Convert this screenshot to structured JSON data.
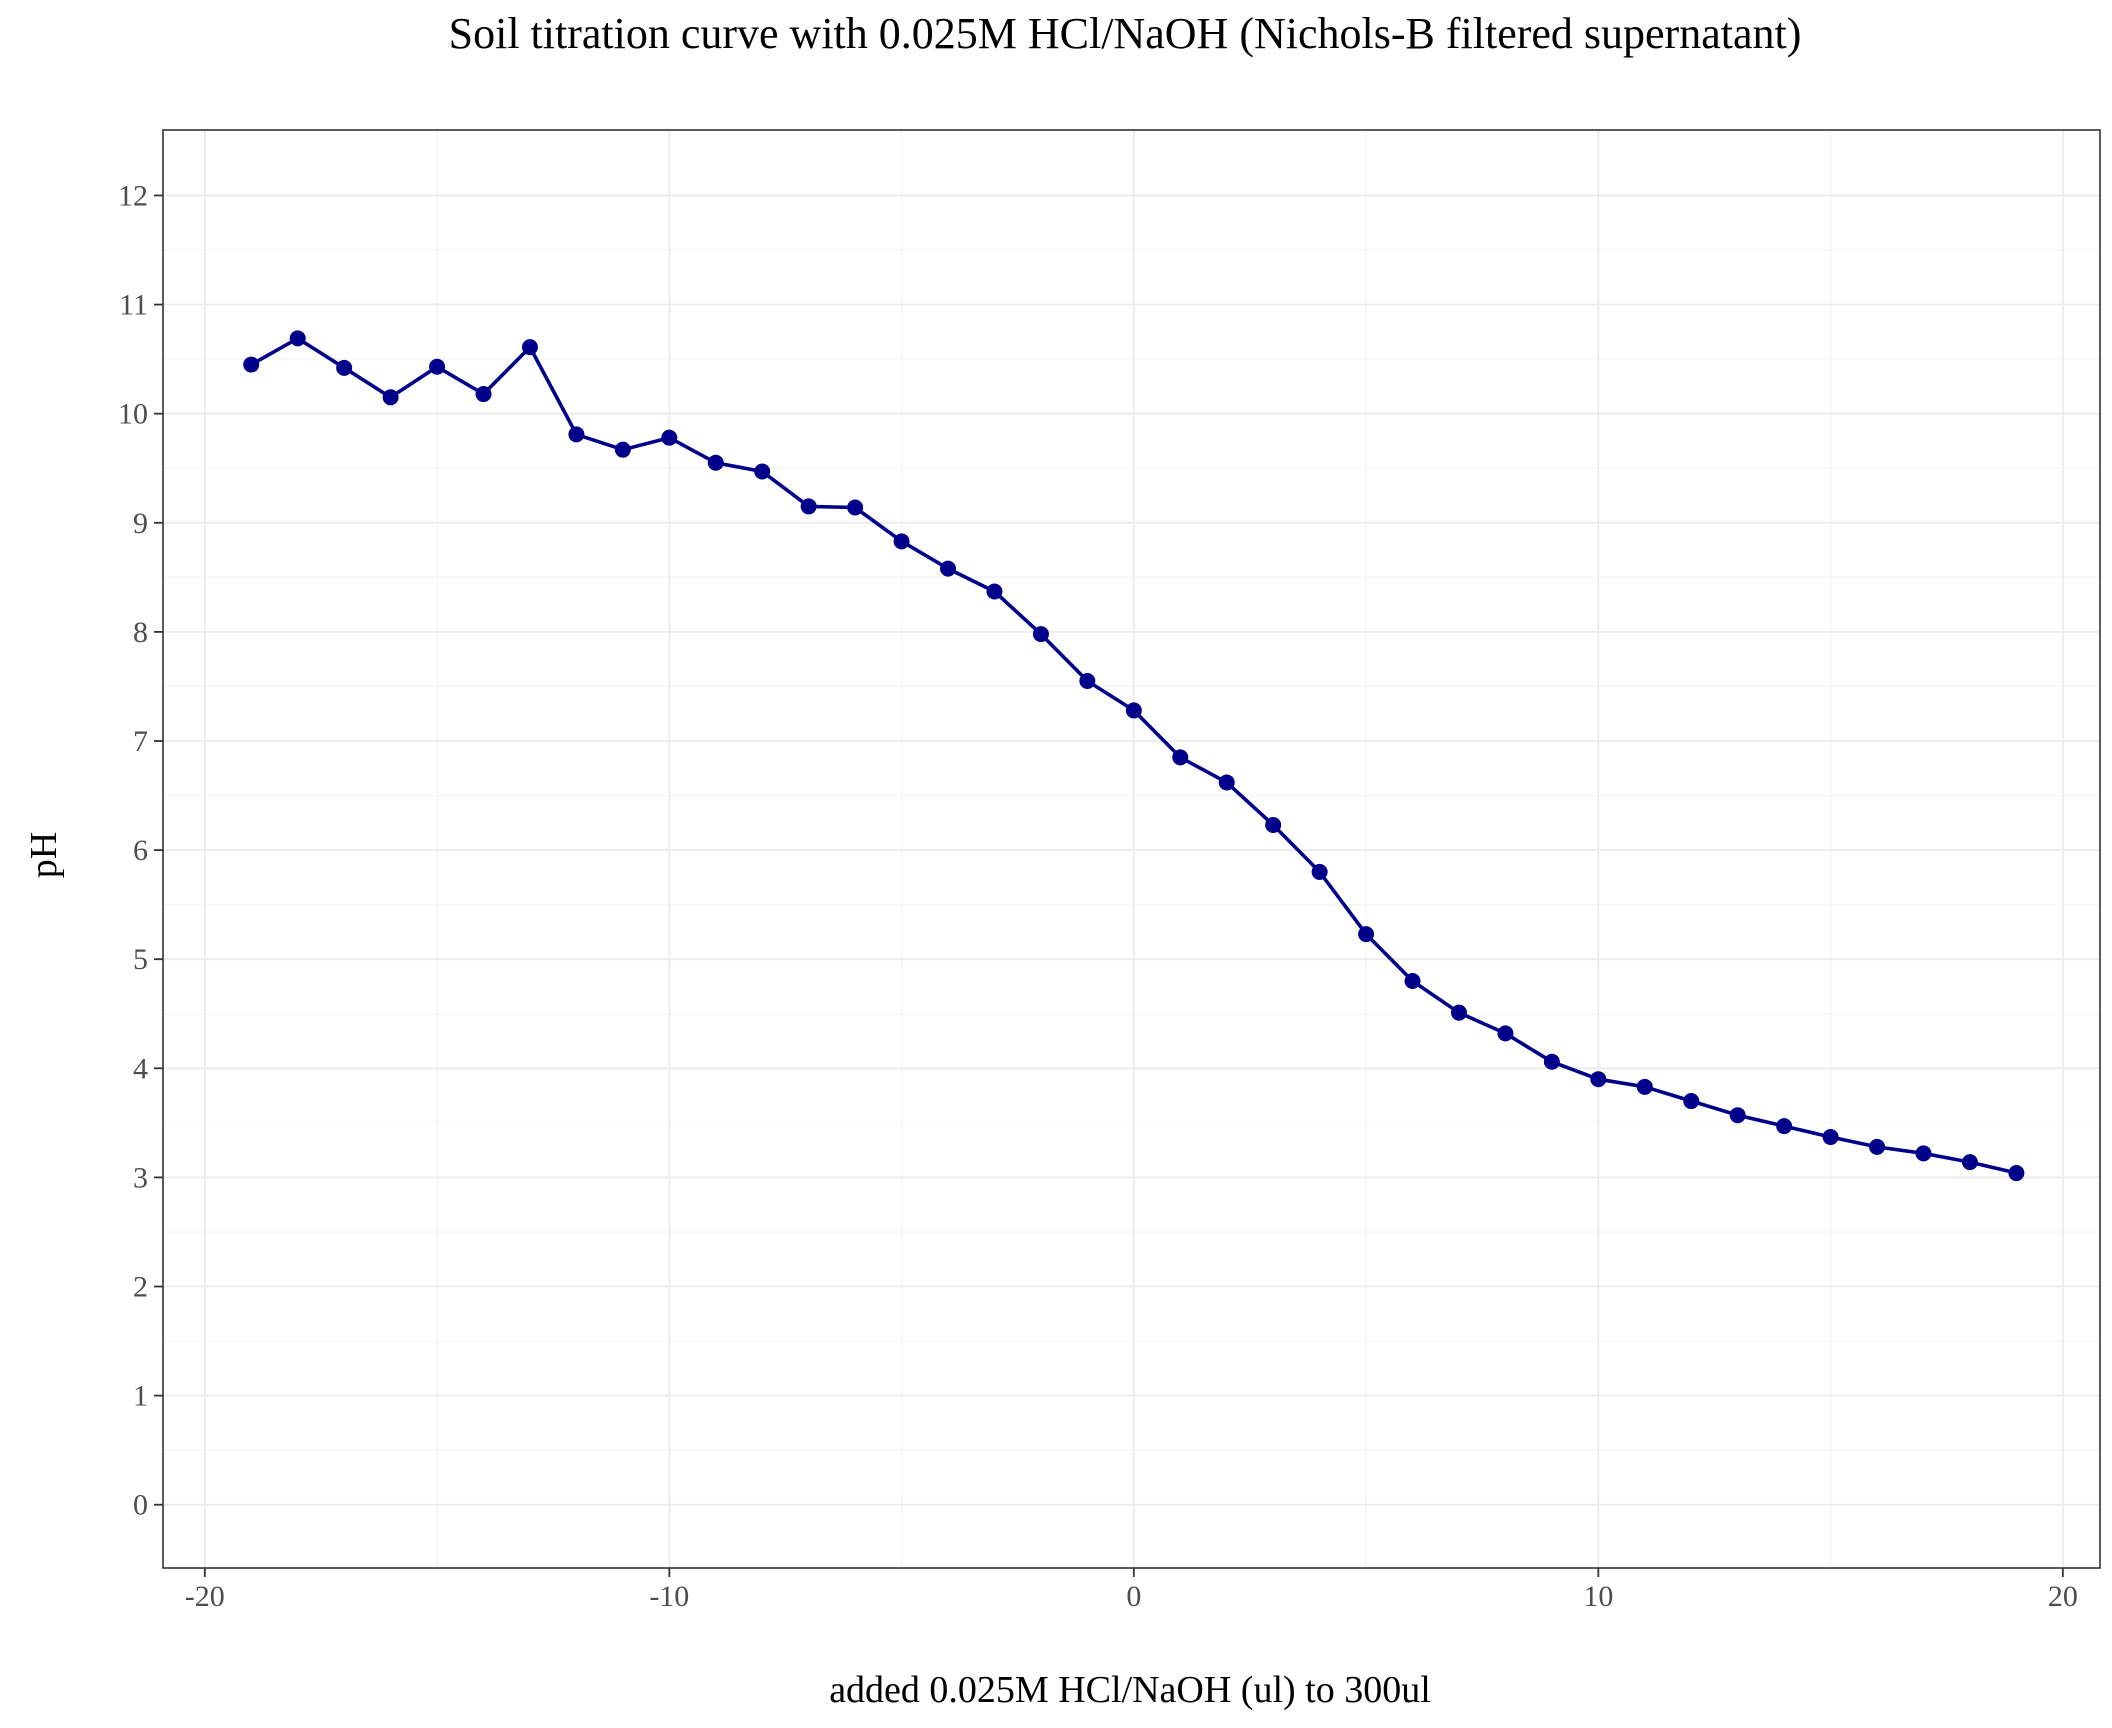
{
  "chart_data": {
    "type": "line",
    "title": "Soil titration curve with 0.025M HCl/NaOH (Nichols-B filtered supernatant)",
    "xlabel": "added 0.025M HCl/NaOH (ul) to 300ul",
    "ylabel": "pH",
    "xlim": [
      -20.9,
      20.8
    ],
    "ylim": [
      -0.58,
      12.6
    ],
    "x_ticks": [
      -20,
      -10,
      0,
      10,
      20
    ],
    "x_tick_labels": [
      "-20",
      "-10",
      "0",
      "10",
      "20"
    ],
    "y_ticks": [
      0,
      1,
      2,
      3,
      4,
      5,
      6,
      7,
      8,
      9,
      10,
      11,
      12
    ],
    "y_tick_labels": [
      "0",
      "1",
      "2",
      "3",
      "4",
      "5",
      "6",
      "7",
      "8",
      "9",
      "10",
      "11",
      "12"
    ],
    "grid": true,
    "series": [
      {
        "color": "#00008B",
        "x": [
          -19,
          -18,
          -17,
          -16,
          -15,
          -14,
          -13,
          -12,
          -11,
          -10,
          -9,
          -8,
          -7,
          -6,
          -5,
          -4,
          -3,
          -2,
          -1,
          0,
          1,
          2,
          3,
          4,
          5,
          6,
          7,
          8,
          9,
          10,
          11,
          12,
          13,
          14,
          15,
          16,
          17,
          18,
          19
        ],
        "y": [
          10.45,
          10.69,
          10.42,
          10.15,
          10.43,
          10.18,
          10.61,
          9.81,
          9.67,
          9.78,
          9.55,
          9.47,
          9.15,
          9.14,
          8.83,
          8.58,
          8.37,
          7.98,
          7.55,
          7.28,
          6.85,
          6.62,
          6.23,
          5.8,
          5.23,
          4.8,
          4.51,
          4.32,
          4.06,
          3.9,
          3.83,
          3.7,
          3.57,
          3.47,
          3.37,
          3.28,
          3.22,
          3.14,
          3.04
        ]
      }
    ]
  },
  "colors": {
    "panel_border": "#333333",
    "grid_major": "#ebebeb",
    "grid_minor": "#f5f5f5",
    "tick_text": "#4d4d4d"
  }
}
